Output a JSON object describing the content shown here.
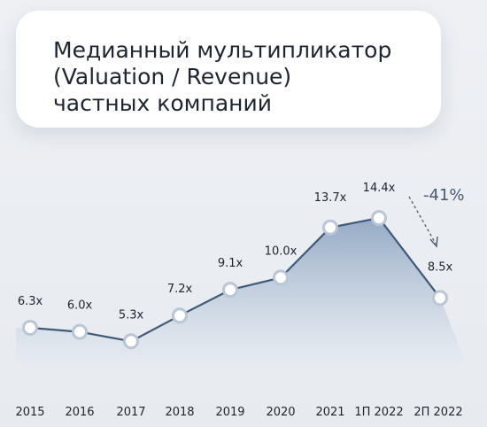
{
  "title": {
    "lines": [
      "Медианный мультипликатор",
      "(Valuation / Revenue)",
      "частных компаний"
    ]
  },
  "chart_data": {
    "type": "area",
    "title": "Медианный мультипликатор (Valuation / Revenue) частных компаний",
    "categories": [
      "2015",
      "2016",
      "2017",
      "2018",
      "2019",
      "2020",
      "2021",
      "1П 2022",
      "2П 2022"
    ],
    "series": [
      {
        "values": [
          6.3,
          6.0,
          5.3,
          7.2,
          9.1,
          10.0,
          13.7,
          14.4,
          8.5
        ],
        "labels": [
          "6.3x",
          "6.0x",
          "5.3x",
          "7.2x",
          "9.1x",
          "10.0x",
          "13.7x",
          "14.4x",
          "8.5x"
        ]
      }
    ],
    "annotation": "-41%",
    "grid": false,
    "colors": {
      "line": "#3f5a78",
      "area_top": "#8fa6c2",
      "area_bottom": "#e6ebf1",
      "marker_fill": "#ffffff",
      "marker_ring": "#b9c6d6"
    }
  }
}
